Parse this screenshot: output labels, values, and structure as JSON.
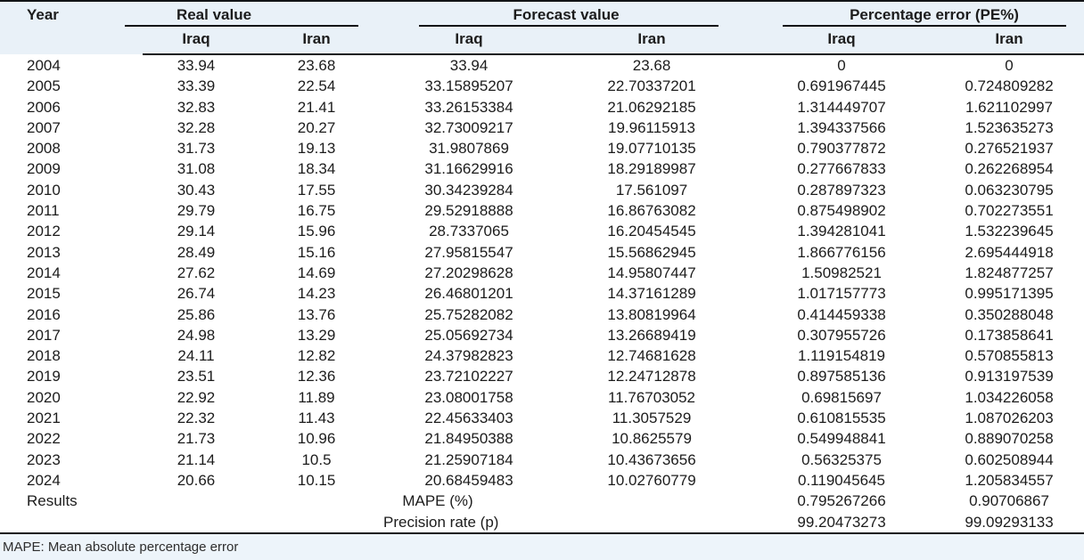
{
  "table": {
    "header": {
      "year": "Year",
      "groups": [
        {
          "label": "Real value",
          "sub": [
            "Iraq",
            "Iran"
          ]
        },
        {
          "label": "Forecast value",
          "sub": [
            "Iraq",
            "Iran"
          ]
        },
        {
          "label": "Percentage error (PE%)",
          "sub": [
            "Iraq",
            "Iran"
          ]
        }
      ]
    },
    "columns": [
      "Year",
      "Real value Iraq",
      "Real value Iran",
      "Forecast value Iraq",
      "Forecast value Iran",
      "PE% Iraq",
      "PE% Iran"
    ],
    "rows": [
      [
        "2004",
        "33.94",
        "23.68",
        "33.94",
        "23.68",
        "0",
        "0"
      ],
      [
        "2005",
        "33.39",
        "22.54",
        "33.15895207",
        "22.70337201",
        "0.691967445",
        "0.724809282"
      ],
      [
        "2006",
        "32.83",
        "21.41",
        "33.26153384",
        "21.06292185",
        "1.314449707",
        "1.621102997"
      ],
      [
        "2007",
        "32.28",
        "20.27",
        "32.73009217",
        "19.96115913",
        "1.394337566",
        "1.523635273"
      ],
      [
        "2008",
        "31.73",
        "19.13",
        "31.9807869",
        "19.07710135",
        "0.790377872",
        "0.276521937"
      ],
      [
        "2009",
        "31.08",
        "18.34",
        "31.16629916",
        "18.29189987",
        "0.277667833",
        "0.262268954"
      ],
      [
        "2010",
        "30.43",
        "17.55",
        "30.34239284",
        "17.561097",
        "0.287897323",
        "0.063230795"
      ],
      [
        "2011",
        "29.79",
        "16.75",
        "29.52918888",
        "16.86763082",
        "0.875498902",
        "0.702273551"
      ],
      [
        "2012",
        "29.14",
        "15.96",
        "28.7337065",
        "16.20454545",
        "1.394281041",
        "1.532239645"
      ],
      [
        "2013",
        "28.49",
        "15.16",
        "27.95815547",
        "15.56862945",
        "1.866776156",
        "2.695444918"
      ],
      [
        "2014",
        "27.62",
        "14.69",
        "27.20298628",
        "14.95807447",
        "1.50982521",
        "1.824877257"
      ],
      [
        "2015",
        "26.74",
        "14.23",
        "26.46801201",
        "14.37161289",
        "1.017157773",
        "0.995171395"
      ],
      [
        "2016",
        "25.86",
        "13.76",
        "25.75282082",
        "13.80819964",
        "0.414459338",
        "0.350288048"
      ],
      [
        "2017",
        "24.98",
        "13.29",
        "25.05692734",
        "13.26689419",
        "0.307955726",
        "0.173858641"
      ],
      [
        "2018",
        "24.11",
        "12.82",
        "24.37982823",
        "12.74681628",
        "1.119154819",
        "0.570855813"
      ],
      [
        "2019",
        "23.51",
        "12.36",
        "23.72102227",
        "12.24712878",
        "0.897585136",
        "0.913197539"
      ],
      [
        "2020",
        "22.92",
        "11.89",
        "23.08001758",
        "11.76703052",
        "0.69815697",
        "1.034226058"
      ],
      [
        "2021",
        "22.32",
        "11.43",
        "22.45633403",
        "11.3057529",
        "0.610815535",
        "1.087026203"
      ],
      [
        "2022",
        "21.73",
        "10.96",
        "21.84950388",
        "10.8625579",
        "0.549948841",
        "0.889070258"
      ],
      [
        "2023",
        "21.14",
        "10.5",
        "21.25907184",
        "10.43673656",
        "0.56325375",
        "0.602508944"
      ],
      [
        "2024",
        "20.66",
        "10.15",
        "20.68459483",
        "10.02760779",
        "0.119045645",
        "1.205834557"
      ]
    ],
    "results": {
      "label": "Results",
      "rows": [
        {
          "metric": "MAPE (%)",
          "pe_iraq": "0.795267266",
          "pe_iran": "0.90706867"
        },
        {
          "metric": "Precision rate (p)",
          "pe_iraq": "99.20473273",
          "pe_iran": "99.09293133"
        }
      ]
    },
    "footnote": "MAPE: Mean absolute percentage error"
  },
  "colors": {
    "header_bg": "#e9f1f8",
    "footnote_bg": "#edf4fa",
    "border": "#121417"
  }
}
